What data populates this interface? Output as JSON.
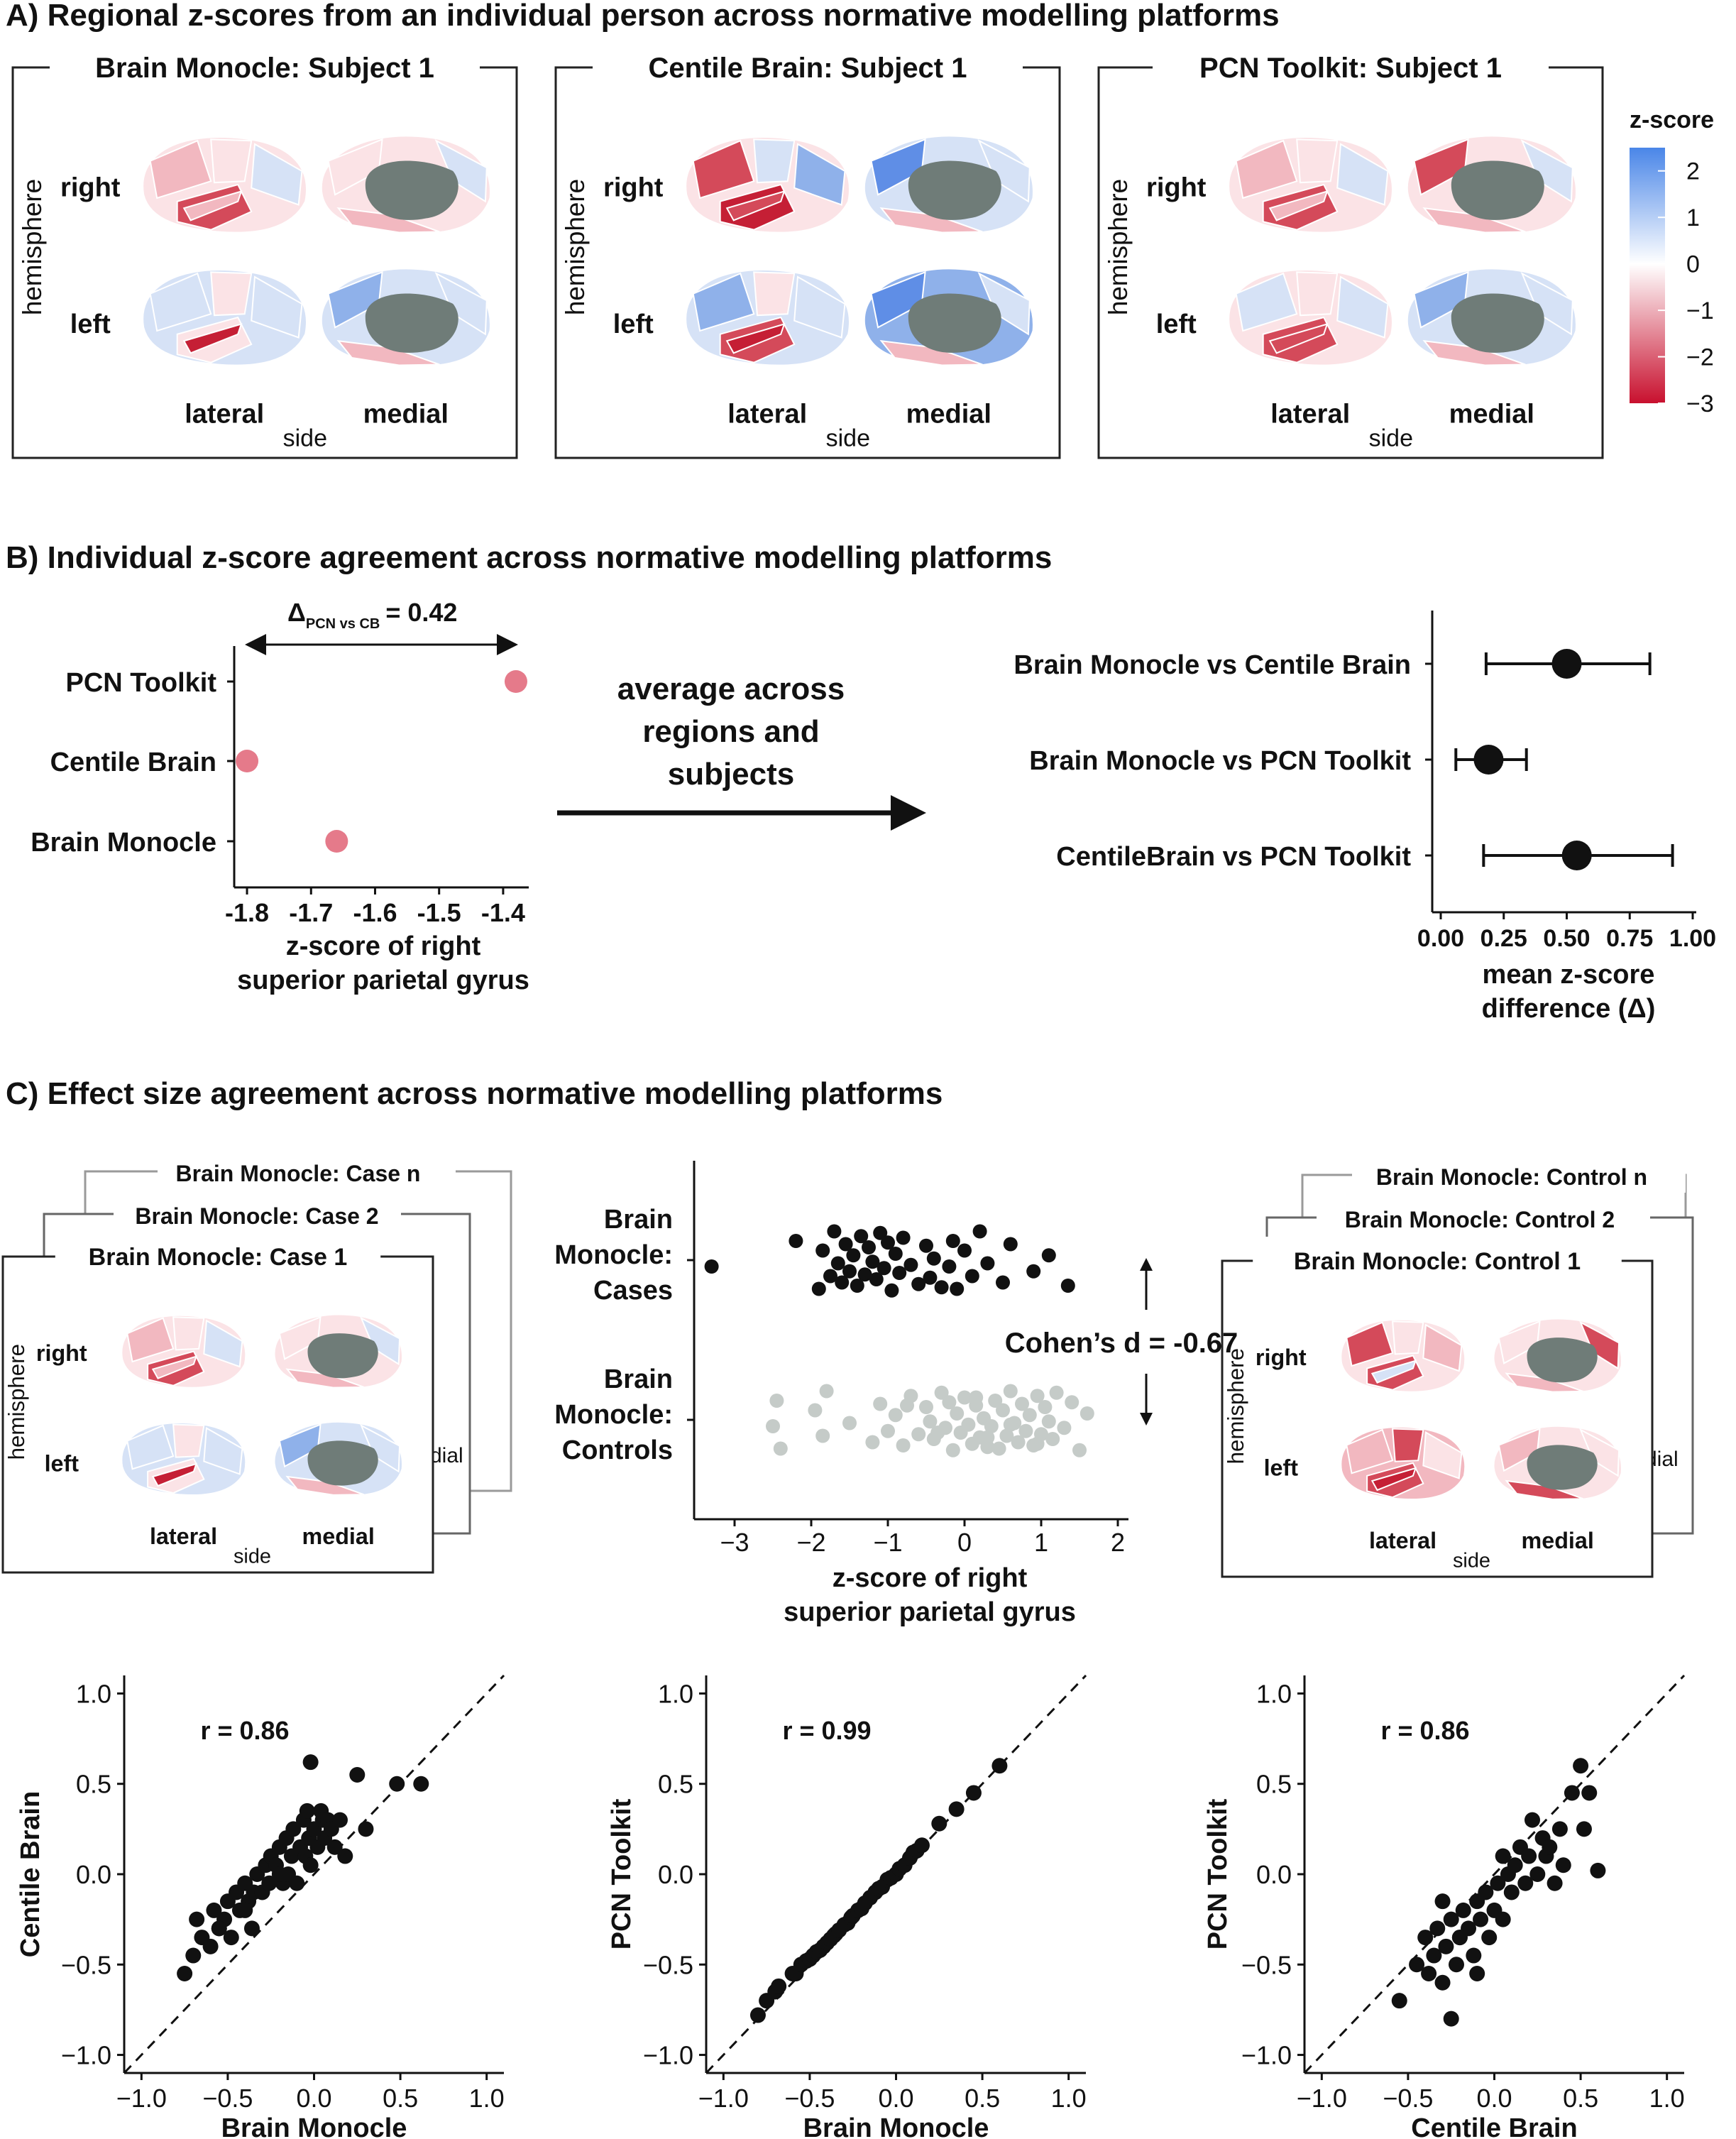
{
  "panel_a": {
    "title": "A) Regional z-scores from an individual person across normative modelling platforms",
    "subjects": [
      "Brain Monocle: Subject 1",
      "Centile Brain: Subject 1",
      "PCN Toolkit: Subject 1"
    ],
    "ylabel": "hemisphere",
    "row_labels": [
      "right",
      "left"
    ],
    "col_labels": [
      "lateral",
      "medial"
    ],
    "xlabel": "side",
    "colorbar": {
      "title": "z-score",
      "ticks": [
        "2",
        "1",
        "0",
        "−1",
        "−2",
        "−3"
      ],
      "range": [
        -3,
        2.5
      ],
      "colors": {
        "low": "#c8102e",
        "mid": "#ffffff",
        "high": "#4a86e8"
      }
    },
    "brain_colors": {
      "gray": "#6f7c78",
      "red": "#d44a5a",
      "darkred": "#c51f35",
      "pink": "#f2b8c0",
      "lightpink": "#fbe3e6",
      "lightblue": "#d6e2f6",
      "blue": "#8fb1ea",
      "midblue": "#5f8ee6"
    }
  },
  "panel_b": {
    "title": "B) Individual z-score agreement across normative modelling platforms",
    "annotation": {
      "delta": "Δ",
      "subscript": "PCN vs CB",
      "value": "= 0.42"
    },
    "arrow_text": [
      "average across",
      "regions and",
      "subjects"
    ],
    "dot_color": "#e57a8a",
    "chart_data": [
      {
        "type": "scatter",
        "categories": [
          "PCN Toolkit",
          "Centile Brain",
          "Brain Monocle"
        ],
        "values": [
          -1.38,
          -1.8,
          -1.66
        ],
        "xlim": [
          -1.82,
          -1.36
        ],
        "xticks": [
          "-1.8",
          "-1.7",
          "-1.6",
          "-1.5",
          "-1.4"
        ],
        "xlabel": [
          "z-score of right",
          "superior parietal gyrus"
        ]
      },
      {
        "type": "errorbar",
        "categories": [
          "Brain Monocle vs Centile Brain",
          "Brain Monocle vs PCN Toolkit",
          "CentileBrain vs PCN Toolkit"
        ],
        "means": [
          0.5,
          0.19,
          0.54
        ],
        "lower": [
          0.18,
          0.06,
          0.17
        ],
        "upper": [
          0.83,
          0.34,
          0.92
        ],
        "xlim": [
          0.0,
          1.0
        ],
        "xticks": [
          "0.00",
          "0.25",
          "0.50",
          "0.75",
          "1.00"
        ],
        "xlabel": [
          "mean z-score",
          "difference (Δ)"
        ]
      }
    ]
  },
  "panel_c": {
    "title": "C) Effect size agreement across normative modelling platforms",
    "cases_stack": [
      "Brain Monocle: Case n",
      "Brain Monocle: Case 2",
      "Brain Monocle: Case 1"
    ],
    "controls_stack": [
      "Brain Monocle: Control n",
      "Brain Monocle: Control 2",
      "Brain Monocle: Control 1"
    ],
    "mini_labels": {
      "ylabel": "hemisphere",
      "right": "right",
      "left": "left",
      "lateral": "lateral",
      "medial": "medial",
      "side": "side",
      "ghost_medial": "dial",
      "ghost_medial2": "dial"
    },
    "cohens_d": "Cohen’s d = -0.67",
    "chart_data": [
      {
        "type": "strip",
        "groups": [
          {
            "name": [
              "Brain",
              "Monocle:",
              "Cases"
            ],
            "color": "#111111",
            "values": [
              -3.3,
              -2.2,
              -1.9,
              -1.85,
              -1.75,
              -1.7,
              -1.65,
              -1.6,
              -1.55,
              -1.5,
              -1.45,
              -1.4,
              -1.35,
              -1.3,
              -1.25,
              -1.2,
              -1.15,
              -1.1,
              -1.05,
              -1.0,
              -0.95,
              -0.9,
              -0.85,
              -0.8,
              -0.7,
              -0.6,
              -0.5,
              -0.45,
              -0.4,
              -0.3,
              -0.2,
              -0.15,
              -0.1,
              0.0,
              0.1,
              0.2,
              0.3,
              0.5,
              0.6,
              0.9,
              1.1,
              1.35
            ]
          },
          {
            "name": [
              "Brain",
              "Monocle:",
              "Controls"
            ],
            "color": "#c5cbc8",
            "values": [
              -2.5,
              -2.45,
              -2.4,
              -1.95,
              -1.85,
              -1.8,
              -1.5,
              -1.2,
              -1.1,
              -1.0,
              -0.9,
              -0.8,
              -0.7,
              -0.6,
              -0.5,
              -0.45,
              -0.4,
              -0.3,
              -0.25,
              -0.2,
              -0.15,
              -0.1,
              -0.05,
              0.0,
              0.05,
              0.1,
              0.15,
              0.2,
              0.25,
              0.3,
              0.35,
              0.4,
              0.45,
              0.5,
              0.55,
              0.6,
              0.65,
              0.7,
              0.75,
              0.8,
              0.85,
              0.9,
              0.95,
              1.0,
              1.05,
              1.1,
              1.15,
              1.2,
              1.3,
              1.4,
              1.5,
              1.6,
              -0.35,
              0.15,
              0.6,
              0.95,
              -0.75,
              0.3
            ]
          }
        ],
        "xlim": [
          -3.4,
          2.1
        ],
        "xticks": [
          -3,
          -2,
          -1,
          0,
          1,
          2
        ],
        "xtick_labels": [
          "−3",
          "−2",
          "−1",
          "0",
          "1",
          "2"
        ],
        "xlabel": [
          "z-score of right",
          "superior parietal gyrus"
        ]
      },
      {
        "type": "scatter",
        "r_label": "r = 0.86",
        "xlabel": "Brain Monocle",
        "ylabel": "Centile Brain",
        "xlim": [
          -1.1,
          1.1
        ],
        "ylim": [
          -1.1,
          1.1
        ],
        "xticks": [
          "−1.0",
          "−0.5",
          "0.0",
          "0.5",
          "1.0"
        ],
        "yticks": [
          "−1.0",
          "−0.5",
          "0.0",
          "0.5",
          "1.0"
        ],
        "x": [
          -0.75,
          -0.7,
          -0.68,
          -0.65,
          -0.6,
          -0.58,
          -0.55,
          -0.52,
          -0.5,
          -0.48,
          -0.45,
          -0.43,
          -0.4,
          -0.38,
          -0.36,
          -0.35,
          -0.33,
          -0.3,
          -0.28,
          -0.26,
          -0.25,
          -0.22,
          -0.2,
          -0.18,
          -0.16,
          -0.15,
          -0.13,
          -0.12,
          -0.1,
          -0.08,
          -0.06,
          -0.05,
          -0.04,
          -0.03,
          -0.02,
          0.0,
          0.02,
          0.04,
          0.05,
          0.06,
          0.08,
          0.1,
          0.12,
          0.15,
          0.18,
          0.25,
          0.3,
          0.48,
          0.62,
          -0.02,
          -0.2,
          -0.4,
          -0.55
        ],
        "y": [
          -0.55,
          -0.45,
          -0.25,
          -0.35,
          -0.4,
          -0.2,
          -0.3,
          -0.25,
          -0.15,
          -0.35,
          -0.1,
          -0.2,
          -0.05,
          -0.15,
          -0.3,
          -0.1,
          0.0,
          -0.1,
          0.05,
          -0.05,
          0.1,
          0.05,
          0.15,
          -0.05,
          0.2,
          0.0,
          0.1,
          0.25,
          -0.05,
          0.15,
          0.3,
          0.1,
          0.35,
          0.2,
          0.05,
          0.25,
          0.15,
          0.35,
          0.3,
          0.2,
          0.3,
          0.25,
          0.15,
          0.3,
          0.1,
          0.55,
          0.25,
          0.5,
          0.5,
          0.62,
          0.0,
          -0.2,
          -0.3
        ]
      },
      {
        "type": "scatter",
        "r_label": "r = 0.99",
        "xlabel": "Brain Monocle",
        "ylabel": "PCN Toolkit",
        "xlim": [
          -1.1,
          1.1
        ],
        "ylim": [
          -1.1,
          1.1
        ],
        "xticks": [
          "−1.0",
          "−0.5",
          "0.0",
          "0.5",
          "1.0"
        ],
        "yticks": [
          "−1.0",
          "−0.5",
          "0.0",
          "0.5",
          "1.0"
        ],
        "x": [
          -0.8,
          -0.75,
          -0.7,
          -0.68,
          -0.6,
          -0.58,
          -0.55,
          -0.52,
          -0.5,
          -0.48,
          -0.46,
          -0.44,
          -0.42,
          -0.4,
          -0.38,
          -0.36,
          -0.35,
          -0.33,
          -0.3,
          -0.28,
          -0.26,
          -0.25,
          -0.22,
          -0.2,
          -0.18,
          -0.15,
          -0.12,
          -0.1,
          -0.08,
          -0.05,
          -0.03,
          0.0,
          0.02,
          0.05,
          0.08,
          0.1,
          0.12,
          0.15,
          0.25,
          0.35,
          0.45,
          0.6
        ],
        "y": [
          -0.78,
          -0.7,
          -0.65,
          -0.62,
          -0.55,
          -0.55,
          -0.5,
          -0.48,
          -0.47,
          -0.45,
          -0.43,
          -0.42,
          -0.4,
          -0.38,
          -0.36,
          -0.34,
          -0.33,
          -0.31,
          -0.28,
          -0.27,
          -0.24,
          -0.23,
          -0.2,
          -0.19,
          -0.16,
          -0.13,
          -0.1,
          -0.08,
          -0.07,
          -0.03,
          -0.02,
          0.0,
          0.03,
          0.05,
          0.09,
          0.12,
          0.13,
          0.16,
          0.28,
          0.36,
          0.45,
          0.6
        ]
      },
      {
        "type": "scatter",
        "r_label": "r = 0.86",
        "xlabel": "Centile Brain",
        "ylabel": "PCN Toolkit",
        "xlim": [
          -1.1,
          1.1
        ],
        "ylim": [
          -1.1,
          1.1
        ],
        "xticks": [
          "−1.0",
          "−0.5",
          "0.0",
          "0.5",
          "1.0"
        ],
        "yticks": [
          "−1.0",
          "−0.5",
          "0.0",
          "0.5",
          "1.0"
        ],
        "x": [
          -0.55,
          -0.45,
          -0.4,
          -0.38,
          -0.35,
          -0.33,
          -0.3,
          -0.28,
          -0.25,
          -0.25,
          -0.22,
          -0.2,
          -0.18,
          -0.15,
          -0.12,
          -0.1,
          -0.1,
          -0.08,
          -0.05,
          -0.03,
          0.0,
          0.02,
          0.05,
          0.08,
          0.1,
          0.12,
          0.15,
          0.18,
          0.2,
          0.22,
          0.25,
          0.28,
          0.3,
          0.32,
          0.35,
          0.38,
          0.4,
          0.45,
          0.5,
          0.52,
          0.55,
          0.6,
          -0.3,
          -0.2,
          0.05
        ],
        "y": [
          -0.7,
          -0.5,
          -0.35,
          -0.55,
          -0.45,
          -0.3,
          -0.6,
          -0.4,
          -0.8,
          -0.25,
          -0.5,
          -0.35,
          -0.2,
          -0.3,
          -0.45,
          -0.15,
          -0.55,
          -0.25,
          -0.1,
          -0.35,
          -0.2,
          -0.05,
          -0.25,
          0.0,
          -0.1,
          0.05,
          0.15,
          -0.05,
          0.1,
          0.3,
          0.0,
          0.2,
          0.1,
          0.15,
          -0.05,
          0.25,
          0.05,
          0.45,
          0.6,
          0.25,
          0.45,
          0.02,
          -0.15,
          -0.35,
          0.1
        ]
      }
    ]
  }
}
